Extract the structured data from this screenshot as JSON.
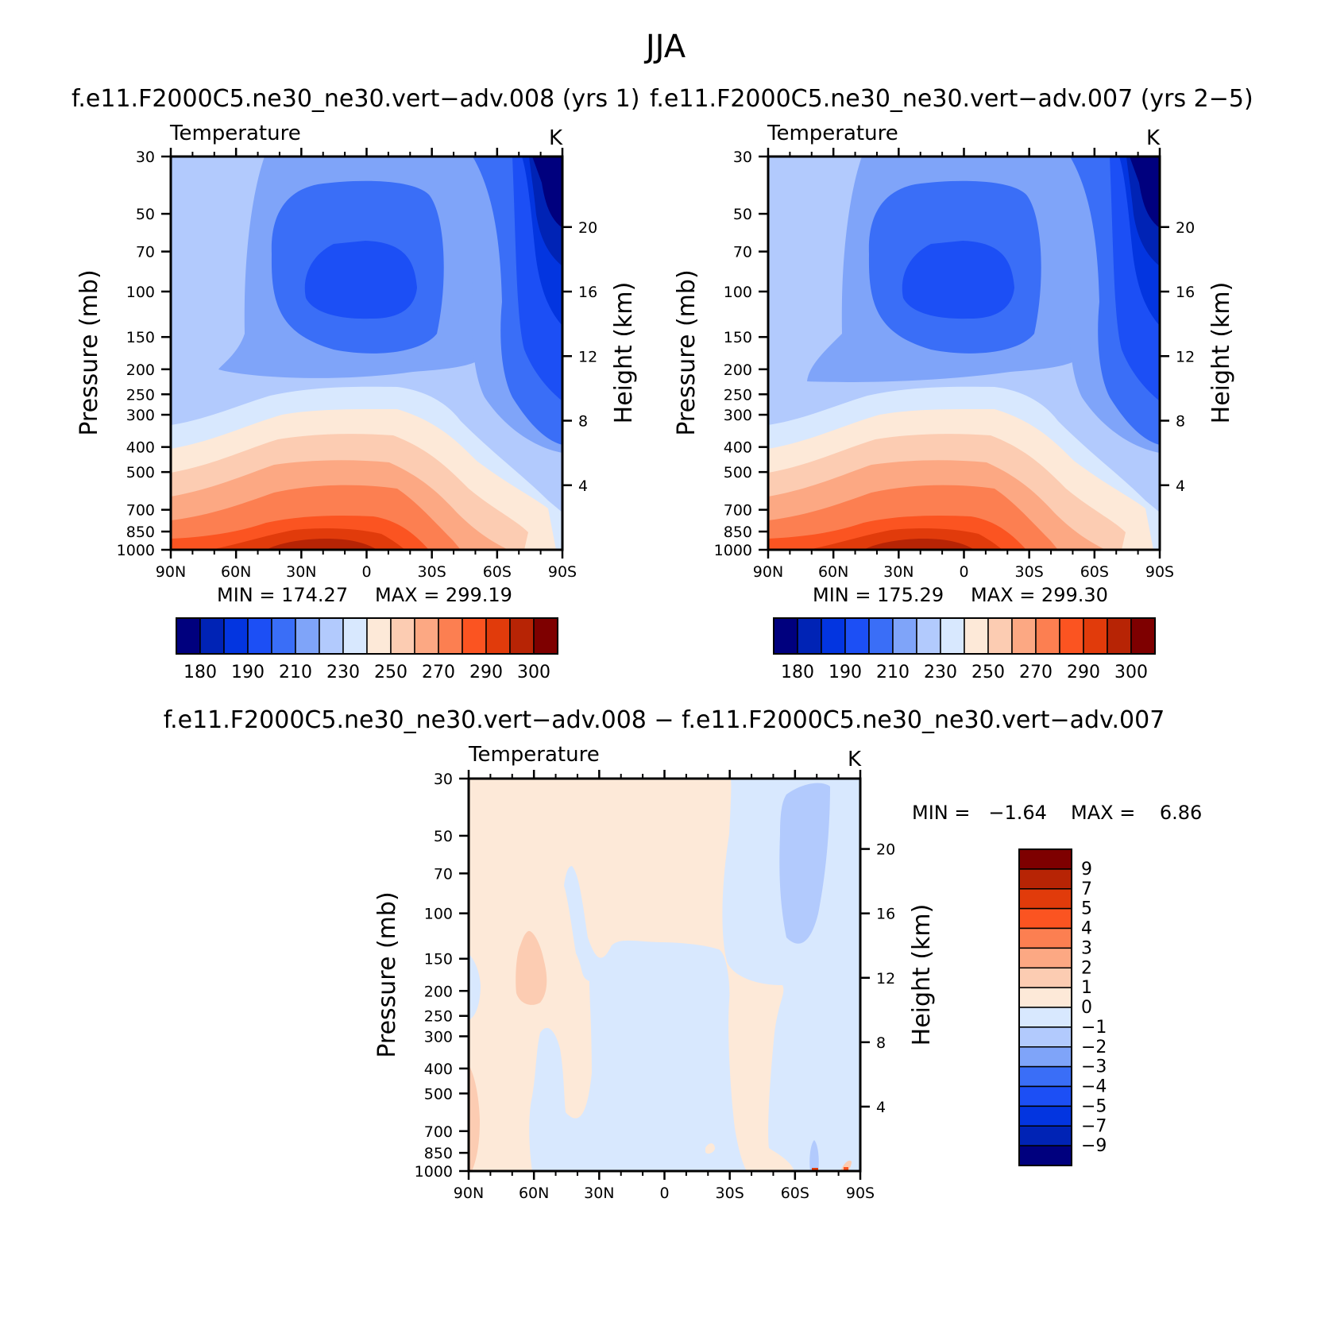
{
  "figure": {
    "title": "JJA"
  },
  "colors": {
    "abs_palette": [
      "#00007e",
      "#0023b5",
      "#0335e0",
      "#1c4ff5",
      "#3a6ef7",
      "#7fa4f9",
      "#b2cafd",
      "#d8e8fe",
      "#fde9d8",
      "#fcccb2",
      "#fca883",
      "#fc7f51",
      "#fb5421",
      "#e13b0b",
      "#b72405",
      "#7e0000"
    ],
    "diff_palette": [
      "#00007e",
      "#0023b5",
      "#0335e0",
      "#1c4ff5",
      "#3a6ef7",
      "#7fa4f9",
      "#b2cafd",
      "#d8e8fe",
      "#fde9d8",
      "#fcccb2",
      "#fca883",
      "#fc7f51",
      "#fb5421",
      "#e13b0b",
      "#b72405",
      "#7e0000"
    ]
  },
  "chart_data": [
    {
      "type": "heatmap",
      "panel": "top-left",
      "title": "f.e11.F2000C5.ne30_ne30.vert−adv.008 (yrs 1)",
      "variable": "Temperature",
      "units": "K",
      "ylabel": "Pressure (mb)",
      "y2label": "Height (km)",
      "x_tick_labels": [
        "90N",
        "60N",
        "30N",
        "0",
        "30S",
        "60S",
        "90S"
      ],
      "x_ticks": [
        90,
        60,
        30,
        0,
        -30,
        -60,
        -90
      ],
      "y_ticks": [
        30,
        50,
        70,
        100,
        150,
        200,
        250,
        300,
        400,
        500,
        700,
        850,
        1000
      ],
      "y_tick_labels": [
        "30",
        "50",
        "70",
        "100",
        "150",
        "200",
        "250",
        "300",
        "400",
        "500",
        "700",
        "850",
        "1000"
      ],
      "y2_ticks": [
        20,
        16,
        12,
        8,
        4
      ],
      "y2_tick_labels": [
        "20",
        "16",
        "12",
        "8",
        "4"
      ],
      "ylim": [
        1000,
        30
      ],
      "xlim": [
        90,
        -90
      ],
      "min_label": "MIN = 174.27",
      "max_label": "MAX = 299.19",
      "min": 174.27,
      "max": 299.19,
      "contour_levels": [
        180,
        185,
        190,
        200,
        210,
        220,
        230,
        240,
        250,
        260,
        270,
        280,
        290,
        295,
        300
      ],
      "colorbar_labels": [
        "180",
        "190",
        "210",
        "230",
        "250",
        "270",
        "290",
        "300"
      ],
      "colorbar_label_boundaries": [
        1,
        3,
        5,
        7,
        9,
        11,
        13,
        15
      ]
    },
    {
      "type": "heatmap",
      "panel": "top-right",
      "title": "f.e11.F2000C5.ne30_ne30.vert−adv.007 (yrs 2−5)",
      "variable": "Temperature",
      "units": "K",
      "ylabel": "Pressure (mb)",
      "y2label": "Height (km)",
      "x_tick_labels": [
        "90N",
        "60N",
        "30N",
        "0",
        "30S",
        "60S",
        "90S"
      ],
      "x_ticks": [
        90,
        60,
        30,
        0,
        -30,
        -60,
        -90
      ],
      "y_ticks": [
        30,
        50,
        70,
        100,
        150,
        200,
        250,
        300,
        400,
        500,
        700,
        850,
        1000
      ],
      "y_tick_labels": [
        "30",
        "50",
        "70",
        "100",
        "150",
        "200",
        "250",
        "300",
        "400",
        "500",
        "700",
        "850",
        "1000"
      ],
      "y2_ticks": [
        20,
        16,
        12,
        8,
        4
      ],
      "y2_tick_labels": [
        "20",
        "16",
        "12",
        "8",
        "4"
      ],
      "ylim": [
        1000,
        30
      ],
      "xlim": [
        90,
        -90
      ],
      "min_label": "MIN = 175.29",
      "max_label": "MAX = 299.30",
      "min": 175.29,
      "max": 299.3,
      "contour_levels": [
        180,
        185,
        190,
        200,
        210,
        220,
        230,
        240,
        250,
        260,
        270,
        280,
        290,
        295,
        300
      ],
      "colorbar_labels": [
        "180",
        "190",
        "210",
        "230",
        "250",
        "270",
        "290",
        "300"
      ],
      "colorbar_label_boundaries": [
        1,
        3,
        5,
        7,
        9,
        11,
        13,
        15
      ]
    },
    {
      "type": "heatmap",
      "panel": "bottom",
      "title": "f.e11.F2000C5.ne30_ne30.vert−adv.008 − f.e11.F2000C5.ne30_ne30.vert−adv.007",
      "variable": "Temperature",
      "units": "K",
      "ylabel": "Pressure (mb)",
      "y2label": "Height (km)",
      "x_tick_labels": [
        "90N",
        "60N",
        "30N",
        "0",
        "30S",
        "60S",
        "90S"
      ],
      "x_ticks": [
        90,
        60,
        30,
        0,
        -30,
        -60,
        -90
      ],
      "y_ticks": [
        30,
        50,
        70,
        100,
        150,
        200,
        250,
        300,
        400,
        500,
        700,
        850,
        1000
      ],
      "y_tick_labels": [
        "30",
        "50",
        "70",
        "100",
        "150",
        "200",
        "250",
        "300",
        "400",
        "500",
        "700",
        "850",
        "1000"
      ],
      "y2_ticks": [
        20,
        16,
        12,
        8,
        4
      ],
      "y2_tick_labels": [
        "20",
        "16",
        "12",
        "8",
        "4"
      ],
      "ylim": [
        1000,
        30
      ],
      "xlim": [
        90,
        -90
      ],
      "min_label": "MIN =   −1.64",
      "max_label": "MAX =    6.86",
      "min": -1.64,
      "max": 6.86,
      "contour_levels": [
        -9,
        -7,
        -5,
        -4,
        -3,
        -2,
        -1,
        0,
        1,
        2,
        3,
        4,
        5,
        7,
        9
      ],
      "colorbar_labels": [
        "9",
        "7",
        "5",
        "4",
        "3",
        "2",
        "1",
        "0",
        "−1",
        "−2",
        "−3",
        "−4",
        "−5",
        "−7",
        "−9"
      ]
    }
  ]
}
